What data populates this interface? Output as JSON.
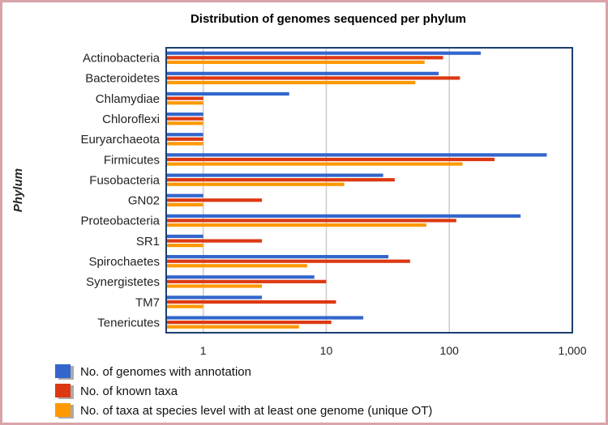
{
  "chart_data": {
    "type": "bar",
    "orientation": "horizontal",
    "title": "Distribution of genomes sequenced per phylum",
    "xlabel": "",
    "ylabel": "Phylum",
    "xscale": "log",
    "xlim": [
      0.5,
      1000
    ],
    "xticks": [
      1,
      10,
      100,
      1000
    ],
    "xtick_labels": [
      "1",
      "10",
      "100",
      "1,000"
    ],
    "grid": true,
    "legend_position": "bottom",
    "categories": [
      "Actinobacteria",
      "Bacteroidetes",
      "Chlamydiae",
      "Chloroflexi",
      "Euryarchaeota",
      "Firmicutes",
      "Fusobacteria",
      "GN02",
      "Proteobacteria",
      "SR1",
      "Spirochaetes",
      "Synergistetes",
      "TM7",
      "Tenericutes"
    ],
    "series": [
      {
        "name": "No. of genomes with annotation",
        "color": "#3366cc",
        "values": [
          180,
          82,
          5,
          1,
          1,
          620,
          29,
          1,
          380,
          1,
          32,
          8,
          3,
          20
        ]
      },
      {
        "name": "No. of known taxa",
        "color": "#dc3912",
        "values": [
          89,
          122,
          1,
          1,
          1,
          233,
          36,
          3,
          114,
          3,
          48,
          10,
          12,
          11
        ]
      },
      {
        "name": "No. of taxa at species level with at least one genome (unique OT)",
        "color": "#ff9900",
        "values": [
          63,
          53,
          1,
          1,
          1,
          128,
          14,
          1,
          65,
          1,
          7,
          3,
          1,
          6
        ]
      }
    ]
  }
}
